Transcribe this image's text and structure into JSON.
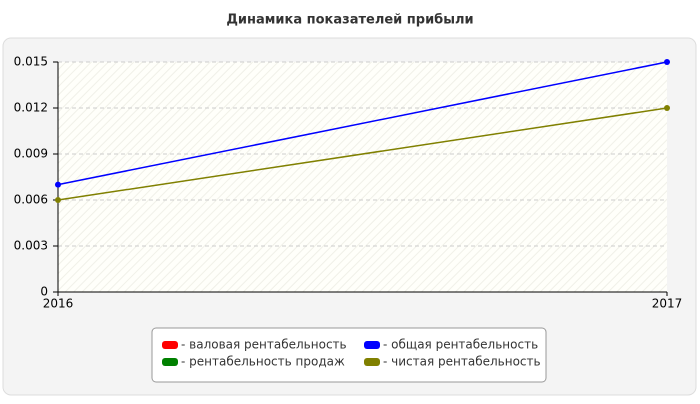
{
  "chart_data": {
    "type": "line",
    "title": "Динамика показателей прибыли",
    "x": [
      2016,
      2017
    ],
    "xlim": [
      2016,
      2017
    ],
    "xticks": [
      2016,
      2017
    ],
    "ylim": [
      0,
      0.015
    ],
    "yticks": [
      0,
      0.003,
      0.006,
      0.009,
      0.012,
      0.015
    ],
    "grid": true,
    "series": [
      {
        "name": "- валовая рентабельность",
        "color": "#ff0000",
        "values": [
          null,
          null
        ]
      },
      {
        "name": "- общая рентабельность",
        "color": "#0000ff",
        "values": [
          0.007,
          0.015
        ]
      },
      {
        "name": "- рентабельность продаж",
        "color": "#008000",
        "values": [
          null,
          null
        ]
      },
      {
        "name": "- чистая рентабельность",
        "color": "#808000",
        "values": [
          0.006,
          0.012
        ]
      }
    ]
  }
}
